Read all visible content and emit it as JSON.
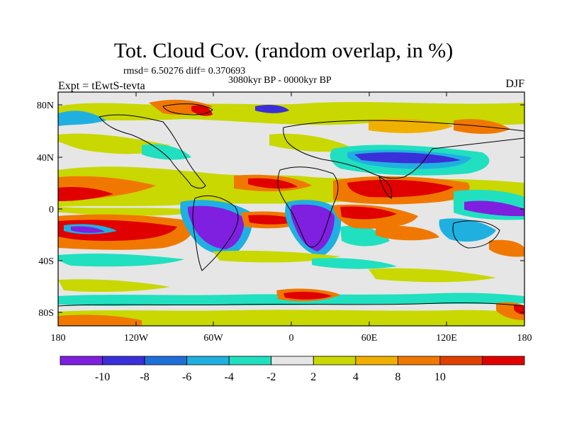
{
  "title": "Tot. Cloud Cov. (random overlap, in %)",
  "stats": "rmsd= 6.50276 diff= 0.370693",
  "period": "3080kyr BP - 0000kyr BP",
  "experiment": "Expt = tEwtS-tevta",
  "season": "DJF",
  "lat_ticks": [
    "80N",
    "40N",
    "0",
    "40S",
    "80S"
  ],
  "lon_ticks": [
    "180",
    "120W",
    "60W",
    "0",
    "60E",
    "120E",
    "180"
  ],
  "colorbar": {
    "labels": [
      "-10",
      "-8",
      "-6",
      "-4",
      "-2",
      "2",
      "4",
      "8",
      "10"
    ],
    "colors": [
      "#7f1fe0",
      "#3a2fd8",
      "#1f6fd8",
      "#1fb0e0",
      "#20e0c0",
      "#e6e6e6",
      "#c8d800",
      "#f0b000",
      "#f07800",
      "#e04000",
      "#e00000"
    ]
  },
  "field_palette": {
    "neutral": "#e6e6e6",
    "neg_strong": "#7f1fe0",
    "neg_med": "#3a2fd8",
    "neg_light": "#1fb0e0",
    "neg_weak": "#20e0c0",
    "pos_weak": "#c8d800",
    "pos_light": "#f0b000",
    "pos_med": "#f07800",
    "pos_strong": "#e00000"
  }
}
